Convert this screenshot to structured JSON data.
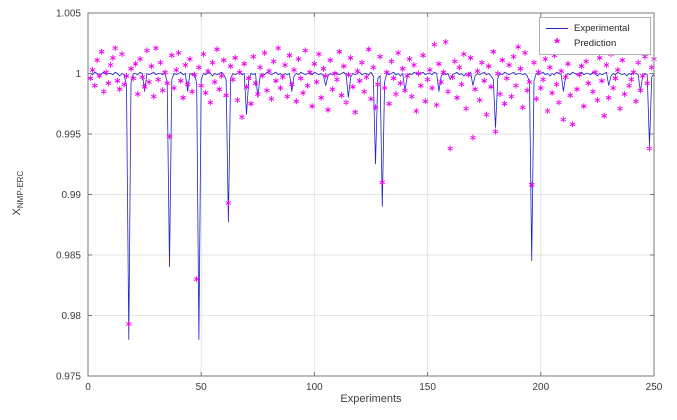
{
  "figure": {
    "xlabel": "Experiments",
    "ylabel_base": "X",
    "ylabel_sub": "NMP-ERC"
  },
  "colors": {
    "experimental_line": "#2222cc",
    "prediction_marker": "#ee00ee",
    "axis": "#7a7a7a",
    "grid": "#e4e4e4"
  },
  "chart_data": {
    "type": "line",
    "title": "",
    "xlabel": "Experiments",
    "ylabel": "X_NMP-ERC",
    "xlim": [
      0,
      250
    ],
    "ylim": [
      0.975,
      1.005
    ],
    "xticks": [
      0,
      50,
      100,
      150,
      200,
      250
    ],
    "yticks": [
      0.975,
      0.98,
      0.985,
      0.99,
      0.995,
      1,
      1.005
    ],
    "ytick_labels": [
      "0.975",
      "0.98",
      "0.985",
      "0.99",
      "0.995",
      "1",
      "1.005"
    ],
    "grid": true,
    "legend_position": "top-right",
    "series": [
      {
        "name": "Experimental",
        "type": "line",
        "color": "#2222cc",
        "x_start": 1,
        "y": [
          1.0,
          0.9999,
          1.0001,
          1.0,
          0.9998,
          1.0,
          1.0001,
          0.9999,
          1.0,
          1.0,
          0.9999,
          1.0001,
          1.0,
          0.9998,
          1.0,
          0.9999,
          0.999,
          0.978,
          0.9992,
          1.0,
          1.0,
          0.9999,
          1.0001,
          1.0,
          0.9985,
          1.0,
          0.9999,
          1.0,
          1.0001,
          0.9999,
          1.0,
          1.0,
          0.9999,
          1.0001,
          0.9992,
          0.984,
          0.9995,
          1.0,
          0.9999,
          1.0,
          1.0001,
          0.9999,
          1.0,
          0.9985,
          1.0,
          0.9999,
          1.0,
          0.9992,
          0.978,
          0.9995,
          1.0,
          0.9999,
          1.0001,
          1.0,
          0.9998,
          1.0,
          0.9999,
          1.0,
          1.0001,
          0.9999,
          0.9995,
          0.9877,
          0.9996,
          1.0,
          0.9999,
          1.0,
          1.0001,
          0.9999,
          1.0,
          0.9966,
          0.9994,
          1.0,
          0.9999,
          1.0,
          0.998,
          0.9998,
          1.0,
          0.9999,
          1.0001,
          1.0,
          0.9999,
          1.0,
          1.0001,
          0.9999,
          1.0,
          0.9998,
          1.0,
          0.9999,
          1.0,
          0.9985,
          0.9998,
          1.0,
          0.9999,
          1.0001,
          1.0,
          0.9999,
          1.0,
          1.0,
          0.9999,
          1.0001,
          1.0,
          0.9999,
          1.0,
          0.9998,
          0.999,
          0.9998,
          1.0,
          0.9999,
          1.0001,
          1.0,
          0.9999,
          1.0,
          1.0001,
          0.9999,
          0.998,
          0.9997,
          1.0,
          0.9999,
          1.0,
          1.0001,
          0.9999,
          1.0,
          1.0,
          0.9999,
          1.0001,
          0.9998,
          0.9925,
          0.9996,
          0.9998,
          0.989,
          0.9993,
          1.0,
          0.9999,
          1.0,
          1.0001,
          0.9999,
          1.0,
          0.9998,
          1.0,
          0.9985,
          0.9998,
          1.0,
          0.9999,
          1.0001,
          1.0,
          0.9999,
          1.0,
          1.0001,
          0.9999,
          1.0,
          1.0,
          0.9999,
          1.0001,
          1.0,
          0.9985,
          0.9998,
          1.0,
          0.9999,
          1.0,
          0.9995,
          0.9999,
          1.0,
          1.0001,
          0.9999,
          1.0,
          0.9998,
          1.0,
          0.9999,
          1.0001,
          0.999,
          0.9998,
          1.0,
          0.9999,
          1.0,
          1.0001,
          0.9999,
          1.0,
          0.9998,
          0.9995,
          0.9955,
          0.9996,
          1.0,
          0.9999,
          1.0001,
          1.0,
          0.9999,
          1.0,
          1.0001,
          0.9999,
          1.0,
          1.0,
          0.9999,
          1.0,
          0.9998,
          0.9993,
          0.9845,
          0.9994,
          1.0,
          0.9999,
          1.0,
          1.0001,
          0.9999,
          1.0,
          0.9998,
          1.0,
          0.9999,
          1.0001,
          1.0,
          0.9999,
          0.9985,
          0.9998,
          1.0,
          0.9999,
          1.0001,
          1.0,
          0.9999,
          1.0,
          1.0001,
          0.9999,
          1.0,
          1.0,
          0.9999,
          1.0001,
          1.0,
          0.9998,
          1.0,
          0.9999,
          1.0,
          1.0001,
          0.999,
          0.9998,
          1.0,
          0.9999,
          1.0001,
          1.0,
          0.9999,
          1.0,
          0.9998,
          1.0,
          0.9999,
          1.0001,
          1.0,
          0.9999,
          0.9985,
          0.9998,
          1.0,
          0.9999,
          0.994,
          0.9997,
          1.0
        ]
      },
      {
        "name": "Prediction",
        "type": "scatter",
        "marker": "asterisk",
        "color": "#ee00ee",
        "x_start": 1,
        "y": [
          0.9996,
          1.0003,
          0.999,
          1.0011,
          0.9998,
          1.0018,
          0.9985,
          1.0001,
          0.9992,
          1.0007,
          1.0013,
          1.0021,
          0.9994,
          0.9987,
          1.0016,
          0.9991,
          0.9998,
          0.9793,
          1.0004,
          0.9996,
          1.0008,
          0.9983,
          1.0012,
          0.9997,
          0.9989,
          1.0019,
          0.9993,
          1.0006,
          0.9981,
          1.0021,
          0.9995,
          1.0009,
          0.9986,
          1.0001,
          0.9992,
          0.9948,
          1.0015,
          0.9988,
          1.0003,
          1.0017,
          0.9994,
          0.998,
          1.0007,
          0.9991,
          1.0012,
          0.9985,
          0.9999,
          0.983,
          1.0005,
          0.999,
          1.0016,
          0.9984,
          1.0002,
          0.9976,
          1.0009,
          0.9993,
          1.002,
          0.9987,
          0.9998,
          1.0011,
          0.9982,
          0.9893,
          1.0006,
          0.9995,
          1.0013,
          0.9978,
          1.0001,
          0.9964,
          1.0008,
          0.9989,
          0.9996,
          0.9975,
          1.0014,
          0.9992,
          0.9983,
          1.0005,
          0.9998,
          1.0017,
          0.9986,
          1.0002,
          0.9979,
          1.001,
          0.9994,
          1.0021,
          0.9988,
          0.9997,
          1.0007,
          0.9981,
          1.0015,
          0.9991,
          1.0003,
          0.9977,
          1.0012,
          0.9996,
          0.9984,
          1.0019,
          0.999,
          1.0001,
          0.9973,
          1.0008,
          0.9993,
          1.0016,
          0.998,
          1.0004,
          0.9998,
          0.997,
          1.0011,
          0.9987,
          1.0,
          0.9995,
          1.0018,
          0.9982,
          1.0006,
          0.9976,
          0.9999,
          1.0013,
          0.9989,
          0.9968,
          1.0002,
          0.9994,
          1.0009,
          0.9985,
          0.9997,
          1.002,
          0.9979,
          1.0005,
          0.9972,
          0.9991,
          1.0014,
          0.991,
          0.9988,
          1.0001,
          0.9975,
          1.001,
          0.9996,
          0.9983,
          1.0017,
          0.9992,
          1.0004,
          0.9986,
          0.9998,
          1.0012,
          0.9981,
          1.0007,
          0.9969,
          1.0,
          0.999,
          1.0015,
          0.9977,
          0.9995,
          1.0003,
          0.9988,
          1.0024,
          0.9974,
          1.0008,
          0.9993,
          1.0001,
          1.0026,
          0.9985,
          0.9938,
          0.9997,
          1.001,
          0.998,
          1.0005,
          0.9991,
          1.0016,
          0.9971,
          0.9999,
          1.0013,
          0.9947,
          0.9987,
          1.0002,
          0.9978,
          1.0009,
          0.9994,
          0.9966,
          1.0006,
          0.9989,
          1.0018,
          0.9952,
          1.0,
          0.9983,
          1.0011,
          0.9975,
          0.9996,
          1.0007,
          0.9981,
          1.0014,
          0.999,
          1.0022,
          1.0004,
          0.9972,
          1.0017,
          0.9986,
          0.9993,
          0.9908,
          1.0009,
          0.9979,
          1.0001,
          0.9988,
          0.9995,
          1.0012,
          0.9969,
          1.0005,
          0.9984,
          1.0015,
          0.9991,
          0.9976,
          1.0002,
          0.9962,
          0.9997,
          1.0008,
          0.9982,
          0.9958,
          1.0018,
          0.9987,
          0.9999,
          1.0006,
          0.9973,
          1.001,
          0.9992,
          1.0043,
          0.9985,
          1.0001,
          0.9978,
          1.0013,
          0.9994,
          0.9965,
          1.0007,
          0.998,
          1.0016,
          0.9988,
          0.9996,
          1.0003,
          0.9971,
          1.0011,
          0.9983,
          1.0019,
          0.999,
          0.9995,
          1.0001,
          0.9977,
          1.0009,
          0.9986,
          0.9998,
          1.0014,
          0.9992,
          0.9938,
          1.0005,
          1.0012
        ]
      }
    ]
  }
}
